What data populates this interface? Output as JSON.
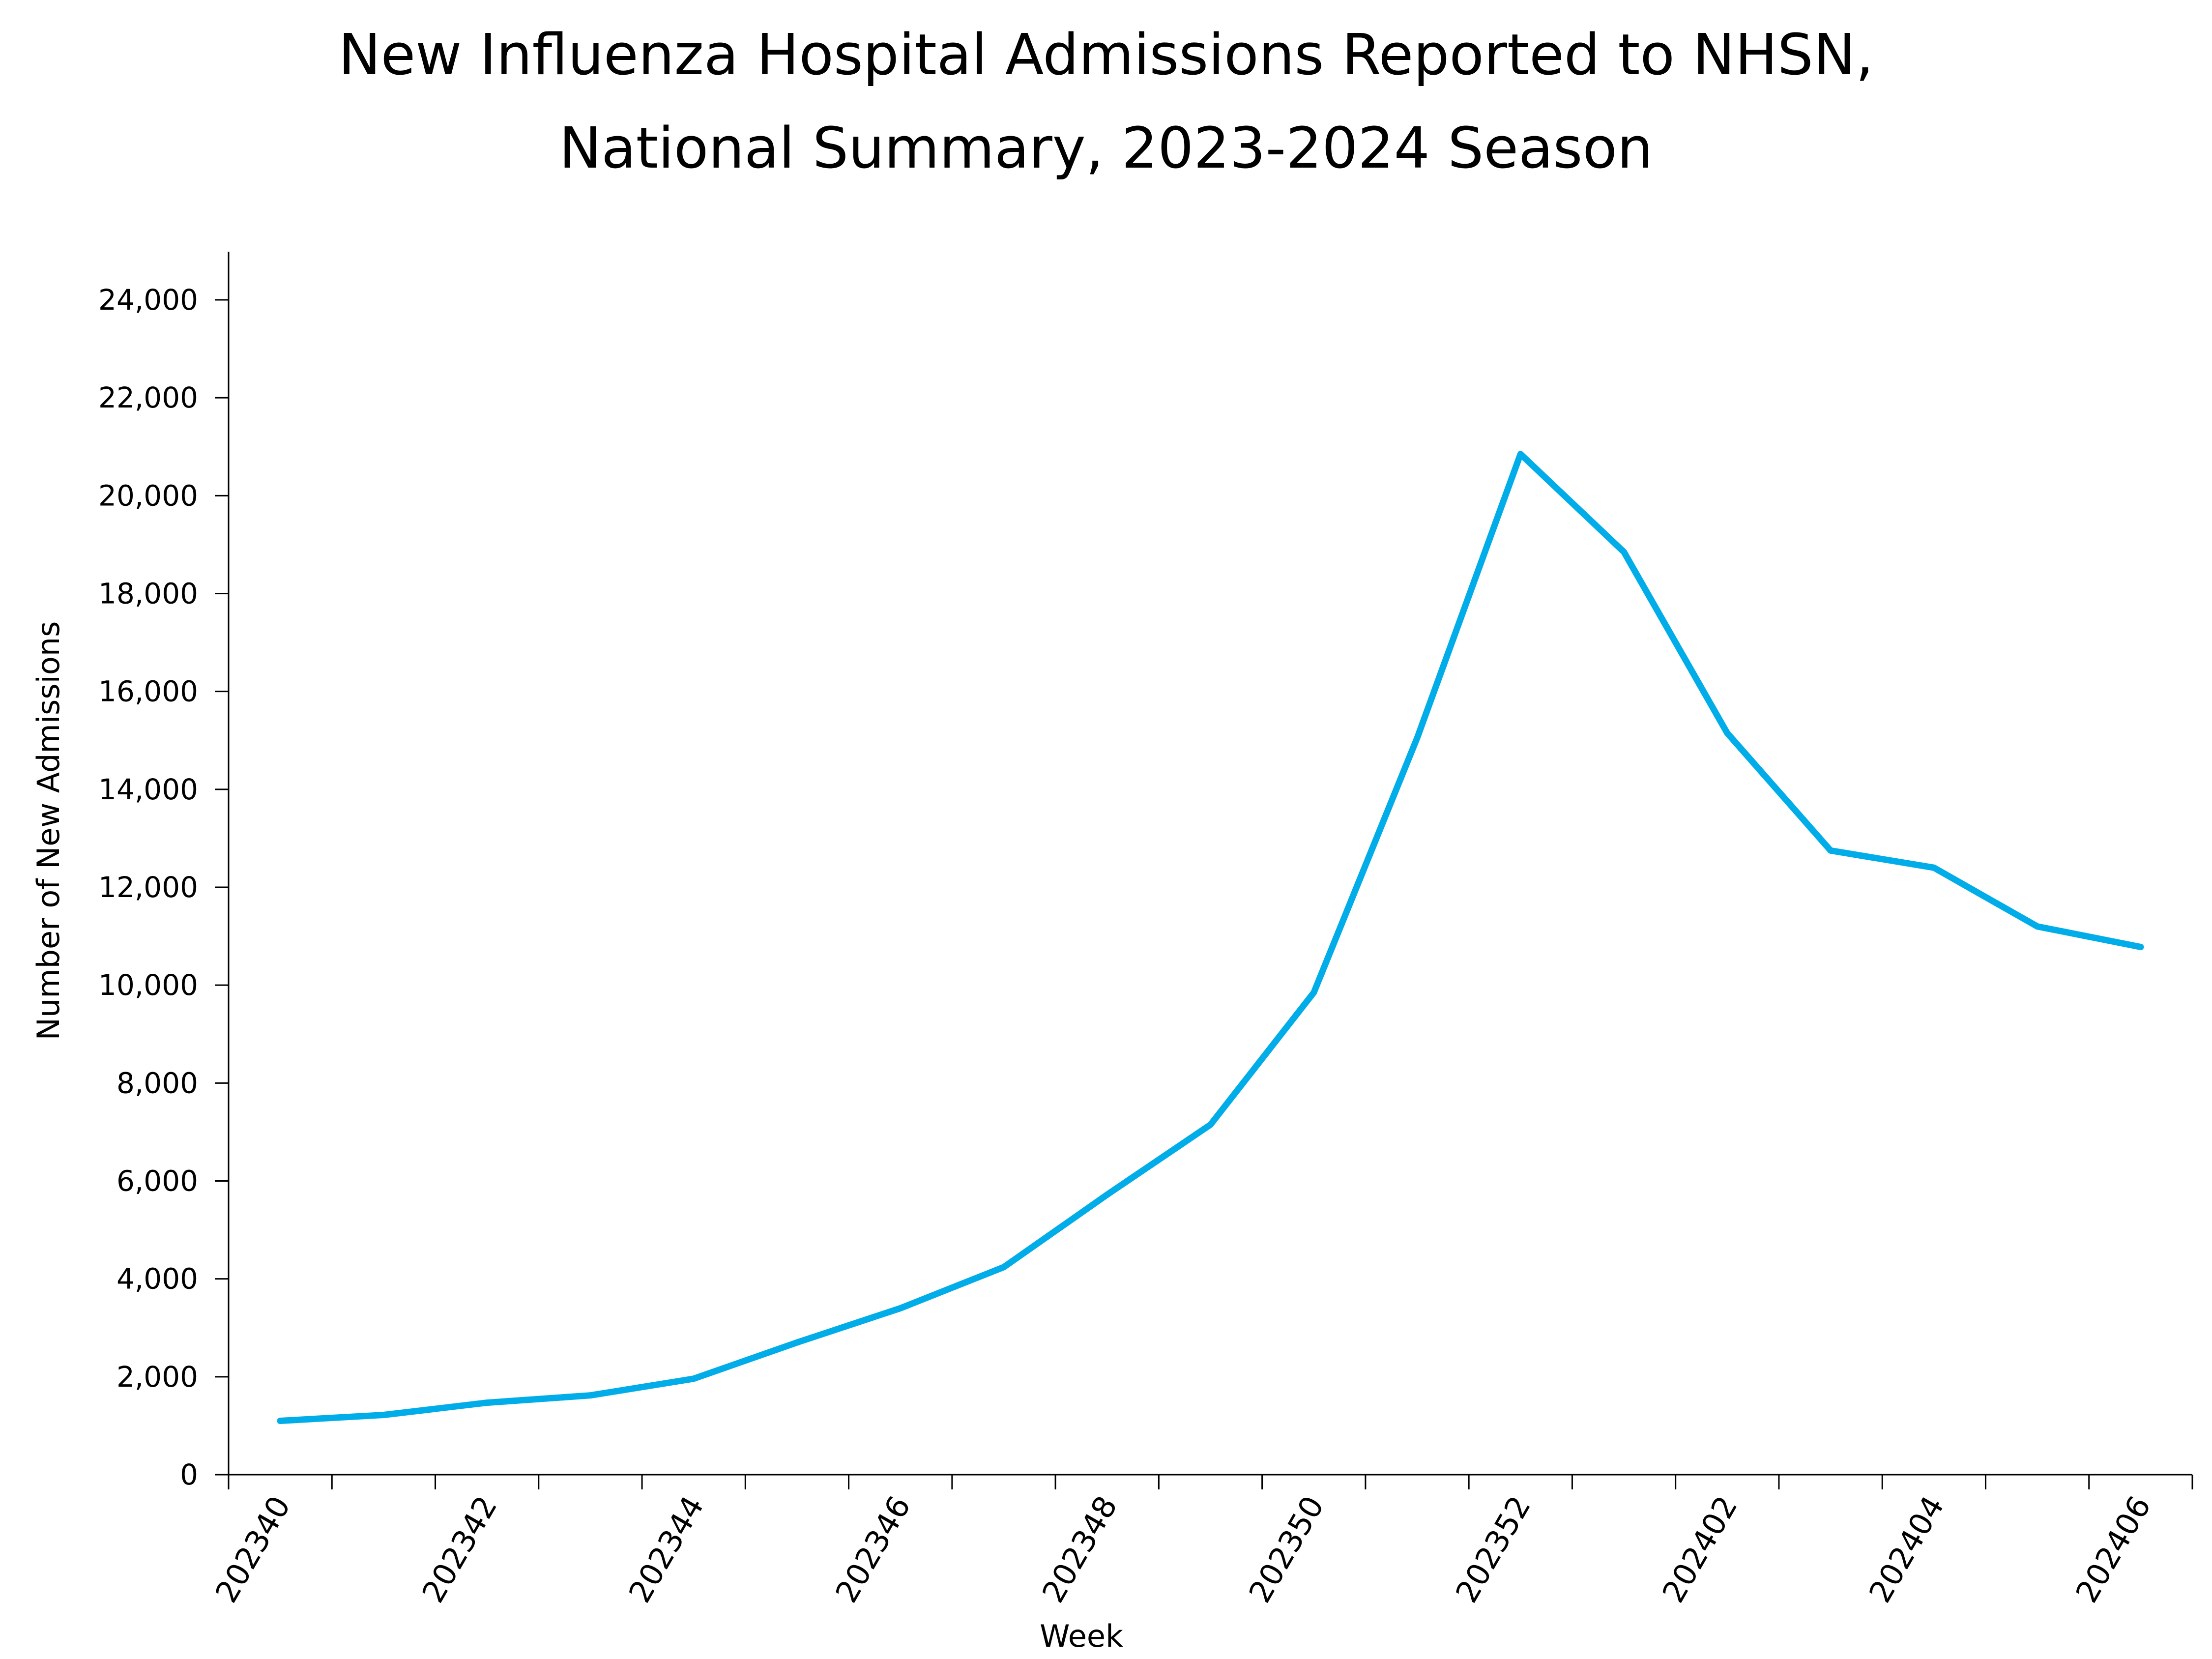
{
  "chart_data": {
    "type": "line",
    "title_lines": [
      "New Influenza Hospital Admissions Reported to NHSN,",
      "National Summary, 2023-2024 Season"
    ],
    "xlabel": "Week",
    "ylabel": "Number of New Admissions",
    "ylim": [
      0,
      25000
    ],
    "yticks": [
      0,
      2000,
      4000,
      6000,
      8000,
      10000,
      12000,
      14000,
      16000,
      18000,
      20000,
      22000,
      24000
    ],
    "ytick_labels": [
      "0",
      "2,000",
      "4,000",
      "6,000",
      "8,000",
      "10,000",
      "12,000",
      "14,000",
      "16,000",
      "18,000",
      "20,000",
      "22,000",
      "24,000"
    ],
    "categories": [
      "202340",
      "202341",
      "202342",
      "202343",
      "202344",
      "202345",
      "202346",
      "202347",
      "202348",
      "202349",
      "202350",
      "202351",
      "202352",
      "202401",
      "202402",
      "202403",
      "202404",
      "202405",
      "202406"
    ],
    "xtick_labels": [
      "202340",
      "202342",
      "202344",
      "202346",
      "202348",
      "202350",
      "202352",
      "202402",
      "202404",
      "202406"
    ],
    "series": [
      {
        "values": [
          1100,
          1220,
          1470,
          1620,
          1960,
          2700,
          3400,
          4240,
          5720,
          7150,
          9850,
          15050,
          20850,
          18850,
          15150,
          12750,
          12400,
          11200,
          10780
        ],
        "color": "#00ADE8"
      }
    ],
    "grid": false,
    "legend": "none"
  }
}
